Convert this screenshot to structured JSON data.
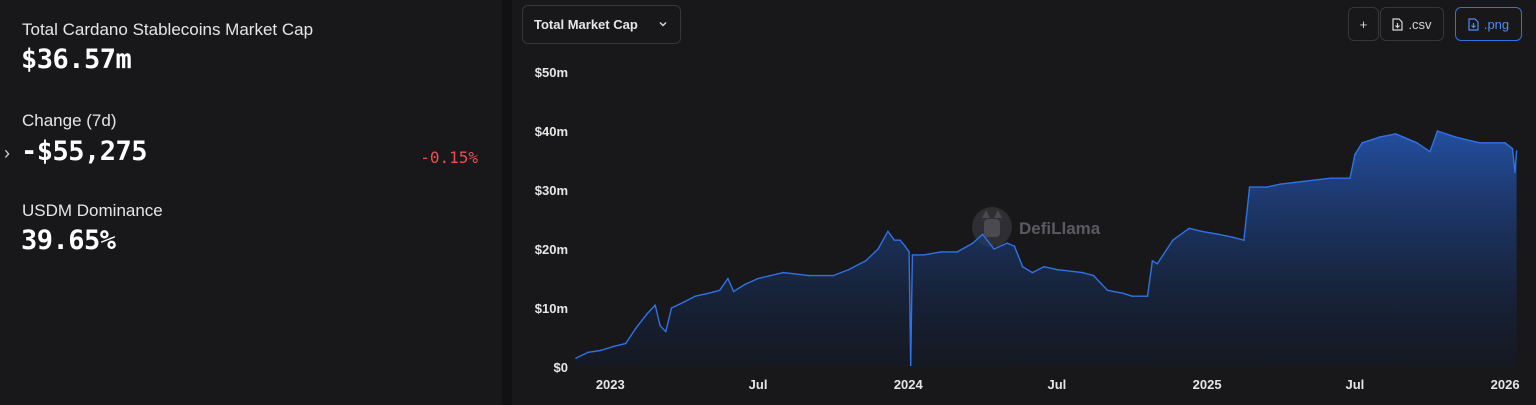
{
  "stats": {
    "total_label": "Total Cardano Stablecoins Market Cap",
    "total_value": "$36.57m",
    "change_label": "Change (7d)",
    "change_value": "-$55,275",
    "change_pct": "-0.15%",
    "dominance_label": "USDM Dominance",
    "dominance_value": "39.65%"
  },
  "controls": {
    "dropdown_label": "Total Market Cap",
    "add_label": "+",
    "csv_label": ".csv",
    "png_label": ".png"
  },
  "watermark": "DefiLlama",
  "colors": {
    "line": "#2f72e6",
    "negative": "#ea4f4f",
    "panel": "#18181b"
  },
  "chart_data": {
    "type": "area",
    "series": [
      {
        "values": [
          [
            "2022-11-20",
            1.5
          ],
          [
            "2022-12-05",
            2.5
          ],
          [
            "2022-12-20",
            2.8
          ],
          [
            "2023-01-05",
            3.5
          ],
          [
            "2023-01-20",
            4.0
          ],
          [
            "2023-02-01",
            6.5
          ],
          [
            "2023-02-15",
            9.0
          ],
          [
            "2023-02-25",
            10.5
          ],
          [
            "2023-03-03",
            7.0
          ],
          [
            "2023-03-10",
            6.0
          ],
          [
            "2023-03-17",
            10.0
          ],
          [
            "2023-04-01",
            11.0
          ],
          [
            "2023-04-15",
            12.0
          ],
          [
            "2023-05-01",
            12.5
          ],
          [
            "2023-05-15",
            13.0
          ],
          [
            "2023-05-25",
            15.0
          ],
          [
            "2023-06-01",
            12.8
          ],
          [
            "2023-06-15",
            14.0
          ],
          [
            "2023-07-01",
            15.0
          ],
          [
            "2023-08-01",
            16.0
          ],
          [
            "2023-09-01",
            15.5
          ],
          [
            "2023-10-01",
            15.5
          ],
          [
            "2023-10-20",
            16.5
          ],
          [
            "2023-11-10",
            18.0
          ],
          [
            "2023-11-25",
            20.0
          ],
          [
            "2023-12-07",
            23.0
          ],
          [
            "2023-12-15",
            21.5
          ],
          [
            "2023-12-22",
            21.5
          ],
          [
            "2023-12-28",
            20.5
          ],
          [
            "2024-01-02",
            19.5
          ],
          [
            "2024-01-04",
            0.3
          ],
          [
            "2024-01-06",
            19.0
          ],
          [
            "2024-01-20",
            19.0
          ],
          [
            "2024-02-10",
            19.5
          ],
          [
            "2024-03-01",
            19.5
          ],
          [
            "2024-03-20",
            21.0
          ],
          [
            "2024-04-01",
            22.5
          ],
          [
            "2024-04-15",
            20.0
          ],
          [
            "2024-05-01",
            21.0
          ],
          [
            "2024-05-10",
            20.5
          ],
          [
            "2024-05-20",
            17.0
          ],
          [
            "2024-06-01",
            16.0
          ],
          [
            "2024-06-15",
            17.0
          ],
          [
            "2024-07-01",
            16.5
          ],
          [
            "2024-08-01",
            16.0
          ],
          [
            "2024-08-15",
            15.5
          ],
          [
            "2024-09-01",
            13.0
          ],
          [
            "2024-09-20",
            12.5
          ],
          [
            "2024-10-01",
            12.0
          ],
          [
            "2024-10-20",
            12.0
          ],
          [
            "2024-10-26",
            18.0
          ],
          [
            "2024-11-01",
            17.5
          ],
          [
            "2024-11-20",
            21.5
          ],
          [
            "2024-12-10",
            23.5
          ],
          [
            "2024-12-25",
            23.0
          ],
          [
            "2025-01-15",
            22.5
          ],
          [
            "2025-02-01",
            22.0
          ],
          [
            "2025-02-15",
            21.5
          ],
          [
            "2025-02-22",
            30.5
          ],
          [
            "2025-03-15",
            30.5
          ],
          [
            "2025-04-01",
            31.0
          ],
          [
            "2025-05-01",
            31.5
          ],
          [
            "2025-06-01",
            32.0
          ],
          [
            "2025-06-25",
            32.0
          ],
          [
            "2025-07-01",
            36.0
          ],
          [
            "2025-07-10",
            38.0
          ],
          [
            "2025-08-01",
            39.0
          ],
          [
            "2025-08-20",
            39.5
          ],
          [
            "2025-09-15",
            38.0
          ],
          [
            "2025-10-01",
            36.5
          ],
          [
            "2025-10-10",
            40.0
          ],
          [
            "2025-11-01",
            39.0
          ],
          [
            "2025-11-15",
            38.5
          ],
          [
            "2025-12-01",
            38.0
          ],
          [
            "2025-12-15",
            38.0
          ],
          [
            "2026-01-01",
            38.0
          ],
          [
            "2026-01-10",
            37.0
          ],
          [
            "2026-01-13",
            33.0
          ],
          [
            "2026-01-15",
            36.6
          ]
        ]
      }
    ],
    "x_ticks": [
      "2023",
      "Jul",
      "2024",
      "Jul",
      "2025",
      "Jul",
      "2026"
    ],
    "x_tick_dates": [
      "2023-01-01",
      "2023-07-01",
      "2024-01-01",
      "2024-07-01",
      "2025-01-01",
      "2025-07-01",
      "2026-01-01"
    ],
    "y_ticks": [
      "$0",
      "$10m",
      "$20m",
      "$30m",
      "$40m",
      "$50m"
    ],
    "y_tick_values": [
      0,
      10,
      20,
      30,
      40,
      50
    ],
    "ylim": [
      0,
      50
    ],
    "xlim": [
      "2022-11-20",
      "2026-01-18"
    ],
    "grid": false,
    "legend": "none"
  }
}
